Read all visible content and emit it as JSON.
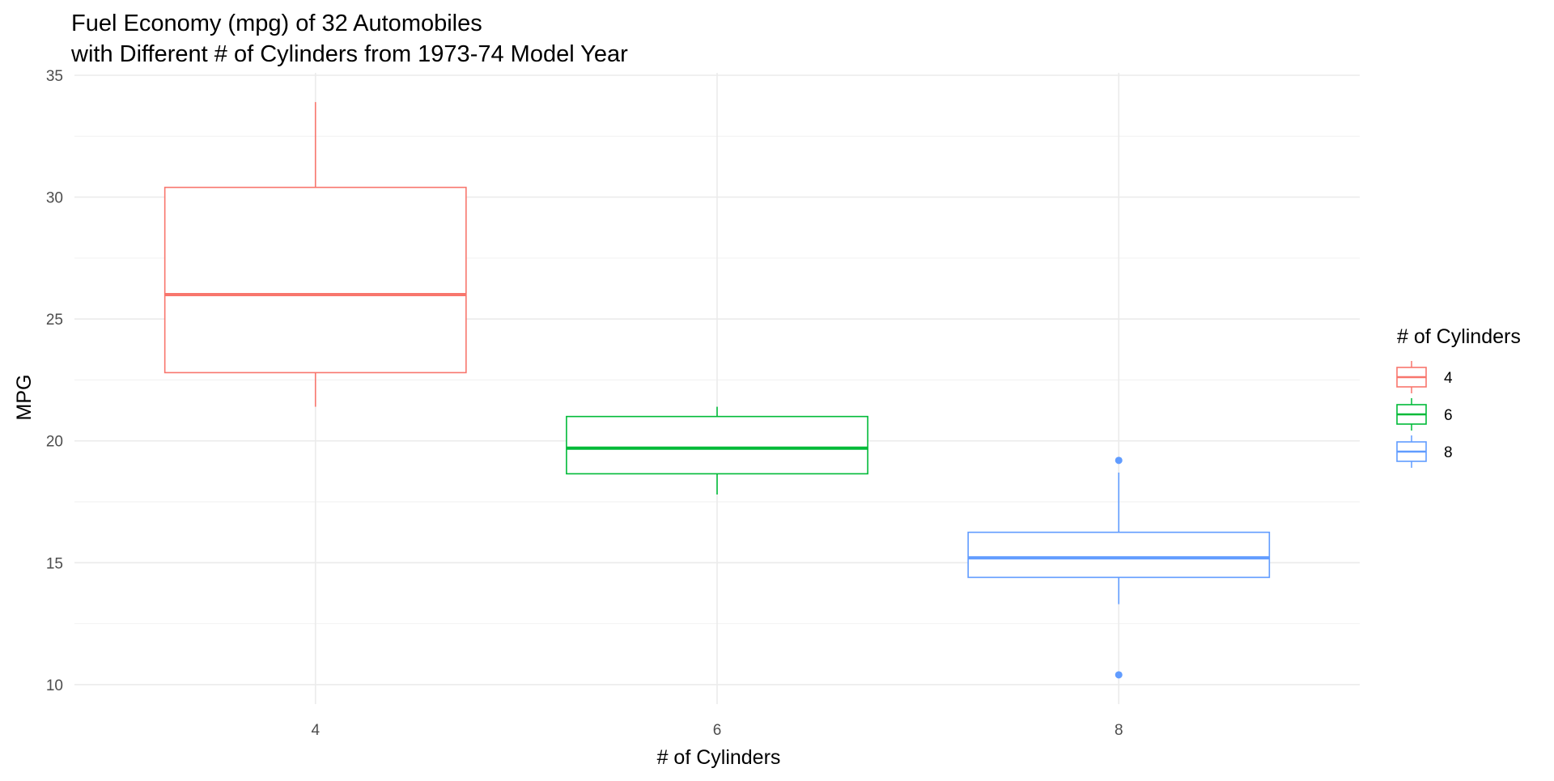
{
  "chart_data": {
    "type": "box",
    "title": "Fuel Economy (mpg) of 32 Automobiles",
    "subtitle": "with Different # of Cylinders from 1973-74 Model Year",
    "xlabel": "# of Cylinders",
    "ylabel": "MPG",
    "categories": [
      "4",
      "6",
      "8"
    ],
    "ylim": [
      9.2,
      35.1
    ],
    "y_ticks": [
      10,
      15,
      20,
      25,
      30,
      35
    ],
    "grid": true,
    "legend": {
      "title": "# of Cylinders",
      "position": "right",
      "entries": [
        "4",
        "6",
        "8"
      ]
    },
    "series": [
      {
        "category": "4",
        "color": "#F8766D",
        "whisker_low": 21.4,
        "q1": 22.8,
        "median": 26.0,
        "q3": 30.4,
        "whisker_high": 33.9,
        "outliers": []
      },
      {
        "category": "6",
        "color": "#00BA38",
        "whisker_low": 17.8,
        "q1": 18.65,
        "median": 19.7,
        "q3": 21.0,
        "whisker_high": 21.4,
        "outliers": []
      },
      {
        "category": "8",
        "color": "#619CFF",
        "whisker_low": 13.3,
        "q1": 14.4,
        "median": 15.2,
        "q3": 16.25,
        "whisker_high": 18.7,
        "outliers": [
          10.4,
          19.2
        ]
      }
    ]
  }
}
